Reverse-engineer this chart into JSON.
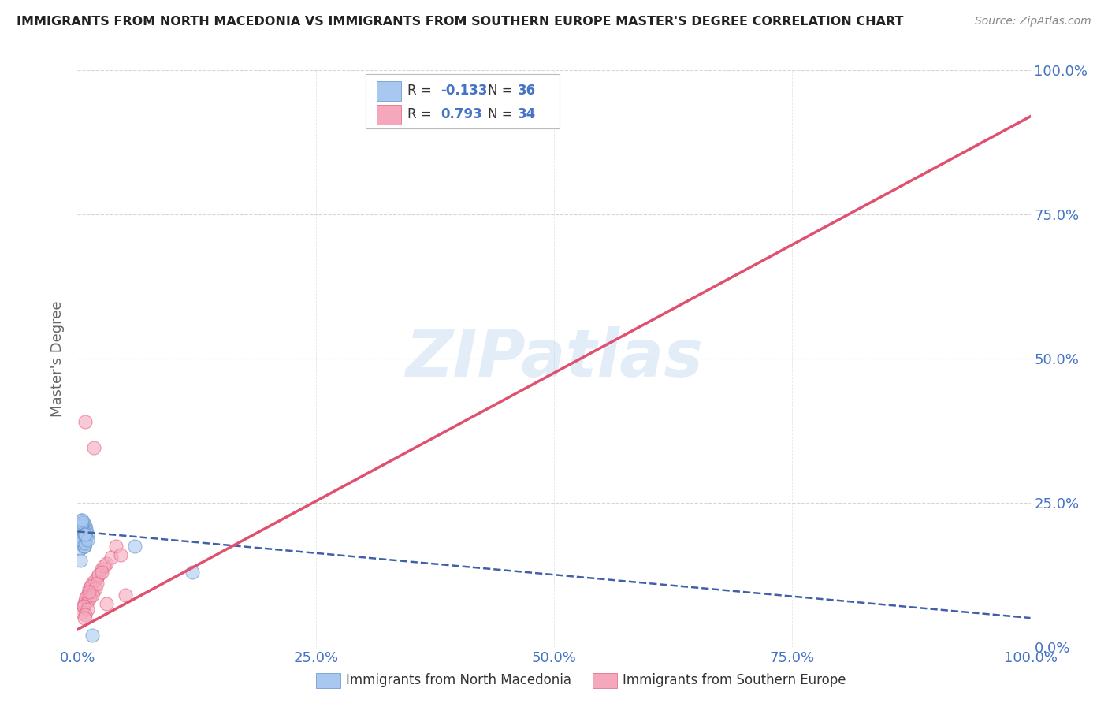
{
  "title": "IMMIGRANTS FROM NORTH MACEDONIA VS IMMIGRANTS FROM SOUTHERN EUROPE MASTER'S DEGREE CORRELATION CHART",
  "source": "Source: ZipAtlas.com",
  "ylabel": "Master's Degree",
  "watermark": "ZIPatlas",
  "blue_R": -0.133,
  "blue_N": 36,
  "pink_R": 0.793,
  "pink_N": 34,
  "blue_color": "#a8c8f0",
  "pink_color": "#f5a8bc",
  "blue_edge_color": "#6090c8",
  "pink_edge_color": "#e06080",
  "blue_line_color": "#4060a8",
  "pink_line_color": "#e05070",
  "blue_scatter_x": [
    0.005,
    0.008,
    0.003,
    0.01,
    0.006,
    0.004,
    0.007,
    0.009,
    0.005,
    0.003,
    0.006,
    0.008,
    0.004,
    0.007,
    0.005,
    0.003,
    0.009,
    0.006,
    0.004,
    0.008,
    0.005,
    0.007,
    0.003,
    0.006,
    0.009,
    0.004,
    0.008,
    0.005,
    0.007,
    0.01,
    0.06,
    0.003,
    0.005,
    0.008,
    0.12,
    0.015
  ],
  "blue_scatter_y": [
    0.19,
    0.21,
    0.185,
    0.195,
    0.175,
    0.2,
    0.18,
    0.205,
    0.215,
    0.17,
    0.195,
    0.185,
    0.22,
    0.175,
    0.21,
    0.19,
    0.2,
    0.215,
    0.18,
    0.195,
    0.205,
    0.175,
    0.185,
    0.2,
    0.19,
    0.21,
    0.18,
    0.215,
    0.195,
    0.185,
    0.175,
    0.15,
    0.22,
    0.195,
    0.13,
    0.02
  ],
  "pink_scatter_x": [
    0.005,
    0.008,
    0.012,
    0.006,
    0.015,
    0.01,
    0.02,
    0.007,
    0.018,
    0.025,
    0.014,
    0.03,
    0.009,
    0.022,
    0.016,
    0.028,
    0.011,
    0.035,
    0.019,
    0.04,
    0.013,
    0.008,
    0.006,
    0.01,
    0.015,
    0.02,
    0.012,
    0.025,
    0.017,
    0.045,
    0.008,
    0.03,
    0.007,
    0.05
  ],
  "pink_scatter_y": [
    0.06,
    0.08,
    0.1,
    0.07,
    0.11,
    0.09,
    0.12,
    0.075,
    0.115,
    0.135,
    0.105,
    0.145,
    0.085,
    0.125,
    0.095,
    0.14,
    0.08,
    0.155,
    0.1,
    0.175,
    0.085,
    0.39,
    0.07,
    0.065,
    0.09,
    0.11,
    0.095,
    0.13,
    0.345,
    0.16,
    0.055,
    0.075,
    0.05,
    0.09
  ],
  "blue_line_x0": 0.0,
  "blue_line_y0": 0.2,
  "blue_line_x1": 1.0,
  "blue_line_y1": 0.05,
  "pink_line_x0": 0.0,
  "pink_line_y0": 0.03,
  "pink_line_x1": 1.0,
  "pink_line_y1": 0.92,
  "xlim": [
    0.0,
    1.0
  ],
  "ylim": [
    0.0,
    1.0
  ],
  "xticks": [
    0.0,
    0.25,
    0.5,
    0.75,
    1.0
  ],
  "yticks": [
    0.0,
    0.25,
    0.5,
    0.75,
    1.0
  ],
  "xticklabels": [
    "0.0%",
    "25.0%",
    "50.0%",
    "75.0%",
    "100.0%"
  ],
  "yticklabels": [
    "0.0%",
    "25.0%",
    "50.0%",
    "75.0%",
    "100.0%"
  ],
  "right_yticklabels": [
    "0.0%",
    "25.0%",
    "50.0%",
    "75.0%",
    "100.0%"
  ],
  "background_color": "#ffffff",
  "grid_color": "#cccccc",
  "legend_label_blue": "Immigrants from North Macedonia",
  "legend_label_pink": "Immigrants from Southern Europe",
  "tick_color": "#4472c4",
  "axis_label_color": "#666666"
}
